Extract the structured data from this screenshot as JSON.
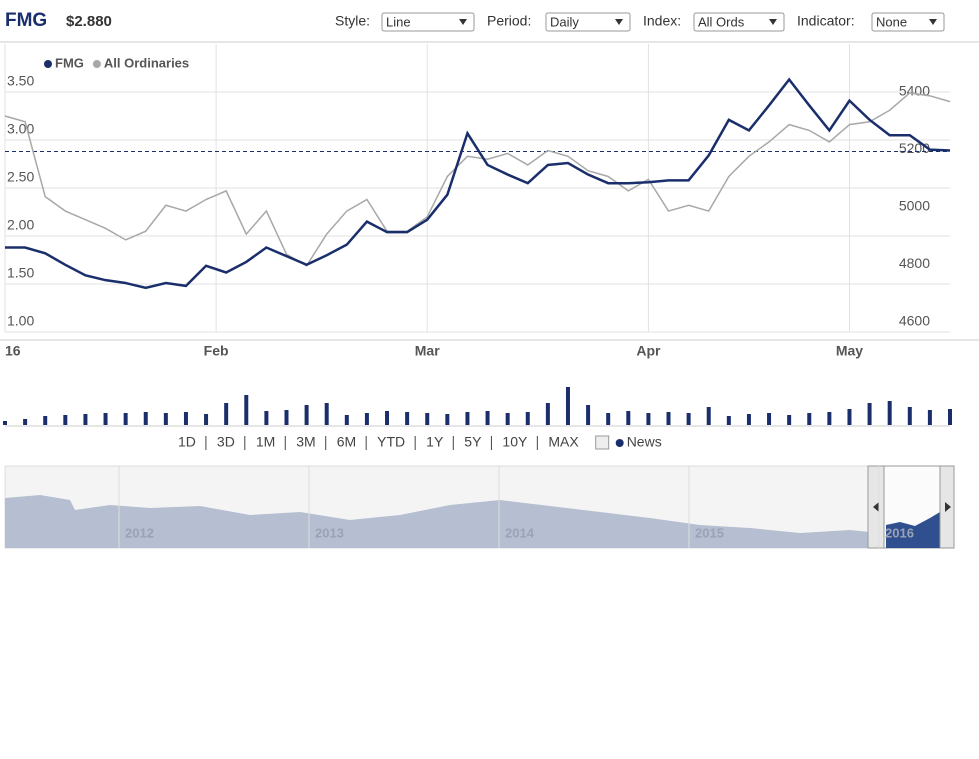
{
  "header": {
    "ticker": "FMG",
    "price": "$2.880",
    "controls": [
      {
        "label": "Style:",
        "value": "Line"
      },
      {
        "label": "Period:",
        "value": "Daily"
      },
      {
        "label": "Index:",
        "value": "All Ords"
      },
      {
        "label": "Indicator:",
        "value": "None"
      }
    ]
  },
  "chart_data": {
    "type": "line",
    "x": [
      0,
      2,
      4,
      6,
      8,
      10,
      12,
      14,
      16,
      18,
      20,
      22,
      24,
      26,
      28,
      30,
      32,
      34,
      36,
      38,
      40,
      42,
      44,
      46,
      48,
      50,
      52,
      54,
      56,
      58,
      60,
      62,
      64,
      66,
      68,
      70,
      72,
      74,
      76,
      78,
      80,
      82,
      84,
      86,
      88,
      90,
      92,
      94
    ],
    "xlim": [
      0,
      94
    ],
    "xticks": [
      {
        "value": 0,
        "label": "16"
      },
      {
        "value": 21,
        "label": "Feb"
      },
      {
        "value": 42,
        "label": "Mar"
      },
      {
        "value": 64,
        "label": "Apr"
      },
      {
        "value": 84,
        "label": "May"
      }
    ],
    "ylim": [
      1.0,
      4.0
    ],
    "yticks": [
      {
        "value": 1,
        "label": "1.00"
      },
      {
        "value": 1.5,
        "label": "1.50"
      },
      {
        "value": 2,
        "label": "2.00"
      },
      {
        "value": 2.5,
        "label": "2.50"
      },
      {
        "value": 3,
        "label": "3.00"
      },
      {
        "value": 3.5,
        "label": "3.50"
      }
    ],
    "y2lim": [
      4600,
      5600
    ],
    "y2ticks": [
      4600,
      4800,
      5000,
      5200,
      5400
    ],
    "grid": true,
    "reference_value": 2.88,
    "series": [
      {
        "name": "FMG",
        "color": "#1a2e6b",
        "values": [
          1.88,
          1.88,
          1.82,
          1.7,
          1.59,
          1.54,
          1.51,
          1.46,
          1.51,
          1.48,
          1.69,
          1.62,
          1.73,
          1.88,
          1.79,
          1.7,
          1.8,
          1.91,
          2.15,
          2.04,
          2.04,
          2.17,
          2.43,
          3.07,
          2.74,
          2.64,
          2.55,
          2.74,
          2.76,
          2.64,
          2.55,
          2.55,
          2.56,
          2.58,
          2.58,
          2.84,
          3.21,
          3.1,
          3.36,
          3.63,
          3.36,
          3.1,
          3.41,
          3.21,
          3.05,
          3.05,
          2.9,
          2.89
        ]
      },
      {
        "name": "All Ordinaries",
        "color": "#a8a8a8",
        "axis": "y2",
        "values": [
          5350,
          5330,
          5070,
          5020,
          4990,
          4960,
          4920,
          4950,
          5040,
          5020,
          5060,
          5090,
          4940,
          5020,
          4870,
          4830,
          4940,
          5020,
          5060,
          4950,
          4950,
          5000,
          5140,
          5210,
          5200,
          5220,
          5180,
          5230,
          5210,
          5160,
          5140,
          5090,
          5130,
          5020,
          5040,
          5020,
          5140,
          5210,
          5260,
          5320,
          5300,
          5260,
          5320,
          5330,
          5370,
          5430,
          5420,
          5400
        ]
      }
    ],
    "volume": [
      4,
      6,
      9,
      10,
      11,
      12,
      12,
      13,
      12,
      13,
      11,
      22,
      30,
      14,
      15,
      20,
      22,
      10,
      12,
      14,
      13,
      12,
      11,
      13,
      14,
      12,
      13,
      22,
      38,
      20,
      12,
      14,
      12,
      13,
      12,
      18,
      9,
      11,
      12,
      10,
      12,
      13,
      16,
      22,
      24,
      18,
      15,
      16
    ]
  },
  "ranges": [
    "1D",
    "3D",
    "1M",
    "3M",
    "6M",
    "YTD",
    "1Y",
    "5Y",
    "10Y",
    "MAX"
  ],
  "news": "News",
  "navigator_years": [
    "2012",
    "2013",
    "2014",
    "2015",
    "2016"
  ]
}
